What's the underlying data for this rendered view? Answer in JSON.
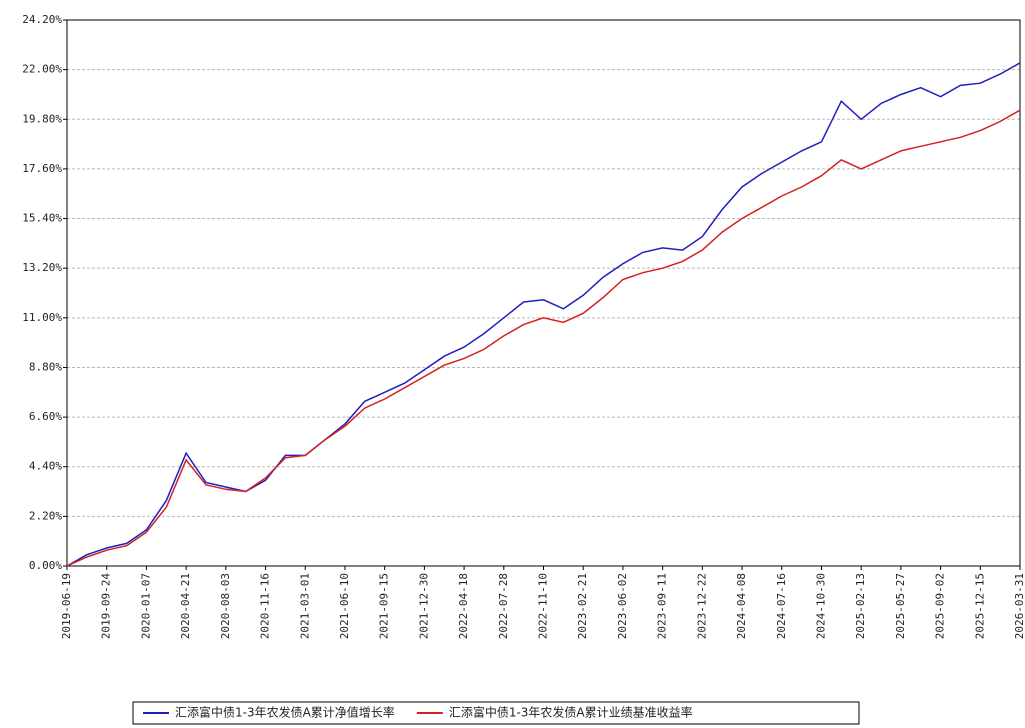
{
  "chart_data": {
    "type": "line",
    "categories": [
      "2019-06-19",
      null,
      "2019-09-24",
      null,
      "2020-01-07",
      null,
      "2020-04-21",
      null,
      "2020-08-03",
      null,
      "2020-11-16",
      null,
      "2021-03-01",
      null,
      "2021-06-10",
      null,
      "2021-09-15",
      null,
      "2021-12-30",
      null,
      "2022-04-18",
      null,
      "2022-07-28",
      null,
      "2022-11-10",
      null,
      "2023-02-21",
      null,
      "2023-06-02",
      null,
      "2023-09-11",
      null,
      "2023-12-22",
      null,
      "2024-04-08",
      null,
      "2024-07-16",
      null,
      "2024-10-30",
      null,
      "2025-02-13",
      null,
      "2025-05-27",
      null,
      "2025-09-02",
      null,
      "2025-12-15",
      null,
      "2026-03-31"
    ],
    "series": [
      {
        "name": "汇添富中债1-3年农发债A累计净值增长率",
        "color": "#1f1fbf",
        "values": [
          0,
          0.5,
          0.8,
          1.0,
          1.6,
          2.9,
          5.0,
          3.7,
          3.5,
          3.3,
          3.8,
          4.9,
          4.9,
          5.6,
          6.3,
          7.3,
          7.7,
          8.1,
          8.7,
          9.3,
          9.7,
          10.3,
          11.0,
          11.7,
          11.8,
          11.4,
          12.0,
          12.8,
          13.4,
          13.9,
          14.1,
          14.0,
          14.6,
          15.8,
          16.8,
          17.4,
          17.9,
          18.4,
          18.8,
          20.6,
          19.8,
          20.5,
          20.9,
          21.2,
          20.8,
          21.3,
          21.4,
          21.8,
          22.3
        ]
      },
      {
        "name": "汇添富中债1-3年农发债A累计业绩基准收益率",
        "color": "#d42020",
        "values": [
          0,
          0.4,
          0.7,
          0.9,
          1.5,
          2.6,
          4.7,
          3.6,
          3.4,
          3.3,
          3.9,
          4.8,
          4.9,
          5.6,
          6.2,
          7.0,
          7.4,
          7.9,
          8.4,
          8.9,
          9.2,
          9.6,
          10.2,
          10.7,
          11.0,
          10.8,
          11.2,
          11.9,
          12.7,
          13.0,
          13.2,
          13.5,
          14.0,
          14.8,
          15.4,
          15.9,
          16.4,
          16.8,
          17.3,
          18.0,
          17.6,
          18.0,
          18.4,
          18.6,
          18.8,
          19.0,
          19.3,
          19.7,
          20.2
        ]
      }
    ],
    "ylim": [
      0,
      24.2
    ],
    "yticks": [
      {
        "value": 0,
        "label": "0.00%"
      },
      {
        "value": 2.2,
        "label": "2.20%"
      },
      {
        "value": 4.4,
        "label": "4.40%"
      },
      {
        "value": 6.6,
        "label": "6.60%"
      },
      {
        "value": 8.8,
        "label": "8.80%"
      },
      {
        "value": 11,
        "label": "11.00%"
      },
      {
        "value": 13.2,
        "label": "13.20%"
      },
      {
        "value": 15.4,
        "label": "15.40%"
      },
      {
        "value": 17.6,
        "label": "17.60%"
      },
      {
        "value": 19.8,
        "label": "19.80%"
      },
      {
        "value": 22,
        "label": "22.00%"
      },
      {
        "value": 24.2,
        "label": "24.20%"
      }
    ],
    "grid": true,
    "legend": "bottom"
  }
}
